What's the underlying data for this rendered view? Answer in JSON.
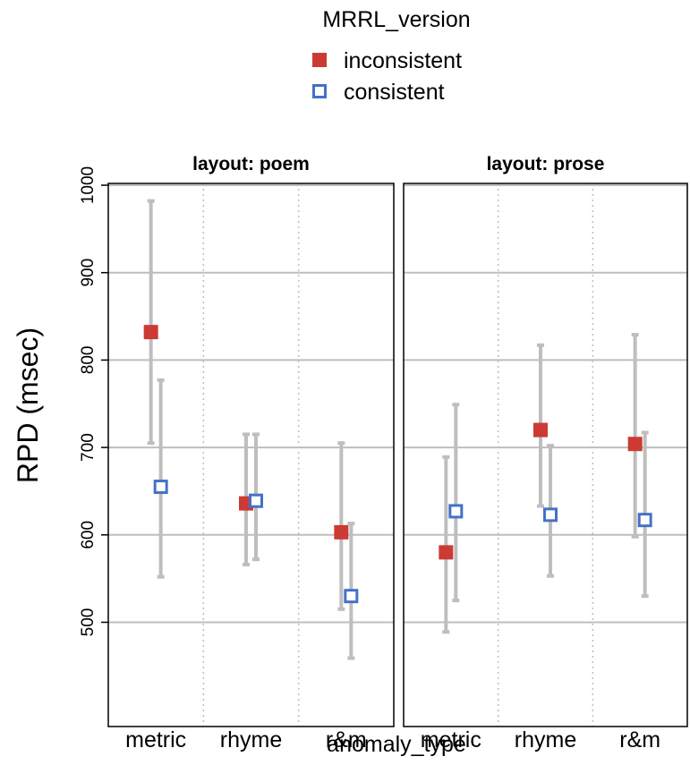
{
  "chart_data": {
    "type": "scatter",
    "legend": {
      "title": "MRRL_version",
      "placement": "top-center",
      "entries": [
        {
          "name": "inconsistent",
          "color": "#CC3B33",
          "marker": "filled-square"
        },
        {
          "name": "consistent",
          "color": "#4472C4",
          "marker": "open-square"
        }
      ]
    },
    "xlabel": "anomaly_type",
    "ylabel": "RPD (msec)",
    "ylim": [
      400,
      1000
    ],
    "yticks": [
      500,
      600,
      700,
      800,
      900,
      1000
    ],
    "grid": true,
    "categories": [
      "metric",
      "rhyme",
      "r&m"
    ],
    "panels": [
      {
        "title": "layout: poem",
        "series": [
          {
            "name": "inconsistent",
            "values": [
              832,
              636,
              603
            ],
            "lower": [
              705,
              566,
              515
            ],
            "upper": [
              982,
              715,
              705
            ]
          },
          {
            "name": "consistent",
            "values": [
              655,
              639,
              530
            ],
            "lower": [
              552,
              572,
              459
            ],
            "upper": [
              777,
              715,
              613
            ]
          }
        ]
      },
      {
        "title": "layout: prose",
        "series": [
          {
            "name": "inconsistent",
            "values": [
              580,
              720,
              704
            ],
            "lower": [
              489,
              633,
              598
            ],
            "upper": [
              689,
              817,
              829
            ]
          },
          {
            "name": "consistent",
            "values": [
              627,
              623,
              617
            ],
            "lower": [
              525,
              553,
              530
            ],
            "upper": [
              749,
              702,
              717
            ]
          }
        ]
      }
    ],
    "errorbar_color": "#BEBEBE"
  }
}
